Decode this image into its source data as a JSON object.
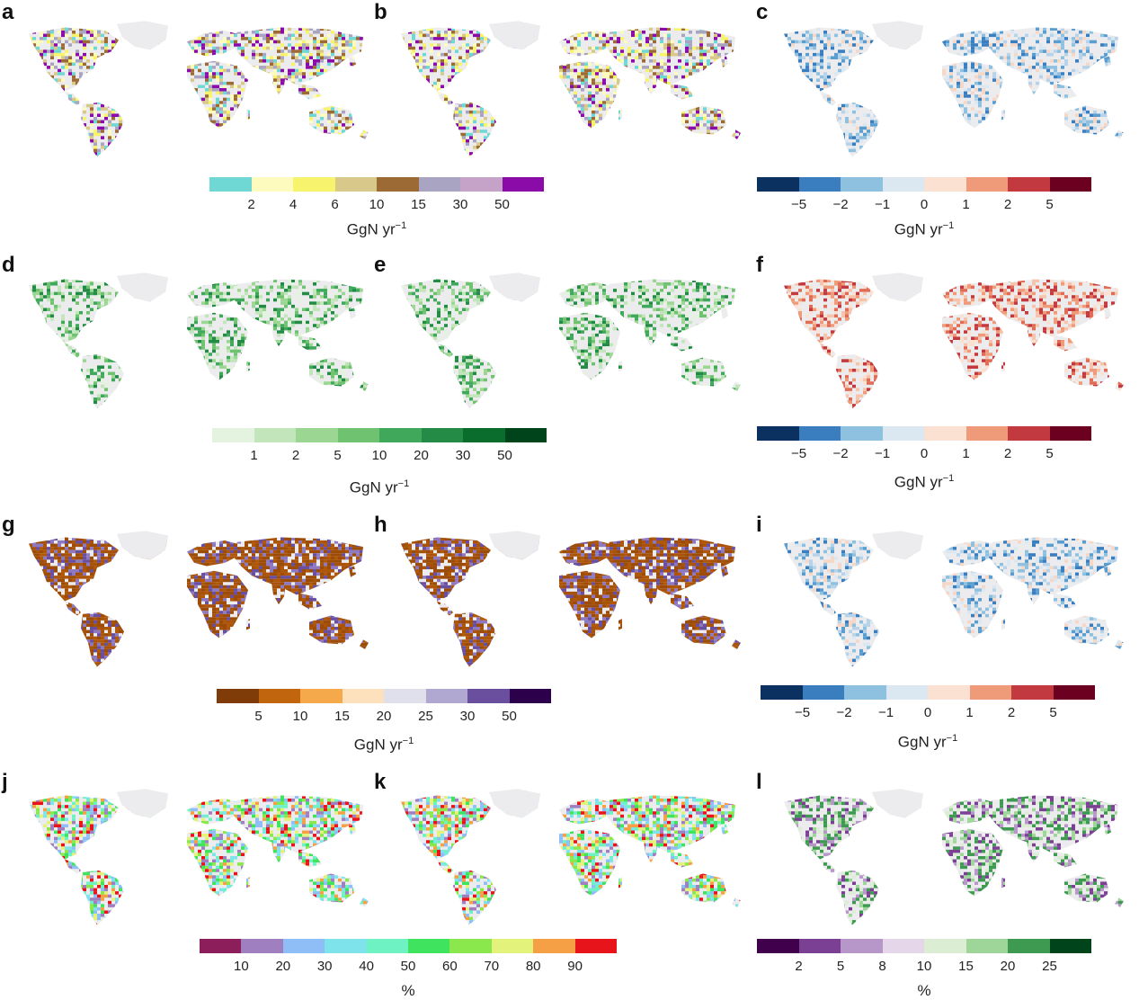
{
  "panels": [
    {
      "letter": "a",
      "style": "magma_a"
    },
    {
      "letter": "b",
      "style": "magma_a"
    },
    {
      "letter": "c",
      "style": "blue"
    },
    {
      "letter": "d",
      "style": "green"
    },
    {
      "letter": "e",
      "style": "green"
    },
    {
      "letter": "f",
      "style": "red"
    },
    {
      "letter": "g",
      "style": "brown"
    },
    {
      "letter": "h",
      "style": "brown"
    },
    {
      "letter": "i",
      "style": "blue"
    },
    {
      "letter": "j",
      "style": "rainbow"
    },
    {
      "letter": "k",
      "style": "rainbow"
    },
    {
      "letter": "l",
      "style": "prgn"
    }
  ],
  "colorbars": [
    {
      "id": "cb-row1-left",
      "colors": [
        "#6fd8d4",
        "#fdfbbd",
        "#f7f36d",
        "#d8c98a",
        "#9c6b35",
        "#a8a4c2",
        "#c5a3c8",
        "#8a0ba8"
      ],
      "ticks": [
        "2",
        "4",
        "6",
        "10",
        "15",
        "30",
        "50"
      ],
      "unit_base": "GgN yr",
      "unit_exp": "−1"
    },
    {
      "id": "cb-row1-right",
      "colors": [
        "#0b3160",
        "#3b7ec0",
        "#8ec0df",
        "#dbe8f1",
        "#fbe1d1",
        "#ef9b7a",
        "#c23a3f",
        "#6b0020"
      ],
      "ticks": [
        "−5",
        "−2",
        "−1",
        "0",
        "1",
        "2",
        "5"
      ],
      "unit_base": "GgN yr",
      "unit_exp": "−1"
    },
    {
      "id": "cb-row2-left",
      "colors": [
        "#e4f3df",
        "#c2e5bb",
        "#9cd693",
        "#6fc26f",
        "#3fa85a",
        "#238b45",
        "#0b6d2d",
        "#00441b"
      ],
      "ticks": [
        "1",
        "2",
        "5",
        "10",
        "20",
        "30",
        "50"
      ],
      "unit_base": "GgN yr",
      "unit_exp": "−1"
    },
    {
      "id": "cb-row2-right",
      "colors": [
        "#0b3160",
        "#3b7ec0",
        "#8ec0df",
        "#dbe8f1",
        "#fbe1d1",
        "#ef9b7a",
        "#c23a3f",
        "#6b0020"
      ],
      "ticks": [
        "−5",
        "−2",
        "−1",
        "0",
        "1",
        "2",
        "5"
      ],
      "unit_base": "GgN yr",
      "unit_exp": "−1"
    },
    {
      "id": "cb-row3-left",
      "colors": [
        "#7f3b08",
        "#c1660f",
        "#f6a94b",
        "#fde0bc",
        "#e0e0ec",
        "#b1a8d2",
        "#6a4f9f",
        "#2d004b"
      ],
      "ticks": [
        "5",
        "10",
        "15",
        "20",
        "25",
        "30",
        "50"
      ],
      "unit_base": "GgN yr",
      "unit_exp": "−1"
    },
    {
      "id": "cb-row3-right",
      "colors": [
        "#0b3160",
        "#3b7ec0",
        "#8ec0df",
        "#dbe8f1",
        "#fbe1d1",
        "#ef9b7a",
        "#c23a3f",
        "#6b0020"
      ],
      "ticks": [
        "−5",
        "−2",
        "−1",
        "0",
        "1",
        "2",
        "5"
      ],
      "unit_base": "GgN yr",
      "unit_exp": "−1"
    },
    {
      "id": "cb-row4-left",
      "colors": [
        "#8c1f5b",
        "#a07fc0",
        "#8ebef5",
        "#7fe3ec",
        "#6ef2c4",
        "#3fe35e",
        "#8ae84d",
        "#e3f27a",
        "#f5a044",
        "#e8141b"
      ],
      "ticks": [
        "10",
        "20",
        "30",
        "40",
        "50",
        "60",
        "70",
        "80",
        "90"
      ],
      "unit_base": "%",
      "unit_exp": ""
    },
    {
      "id": "cb-row4-right",
      "colors": [
        "#40004b",
        "#7b3f94",
        "#b797c9",
        "#e5d6ea",
        "#dbeed3",
        "#9ed69a",
        "#3f9a51",
        "#00441b"
      ],
      "ticks": [
        "2",
        "5",
        "8",
        "10",
        "15",
        "20",
        "25"
      ],
      "unit_base": "%",
      "unit_exp": ""
    }
  ]
}
